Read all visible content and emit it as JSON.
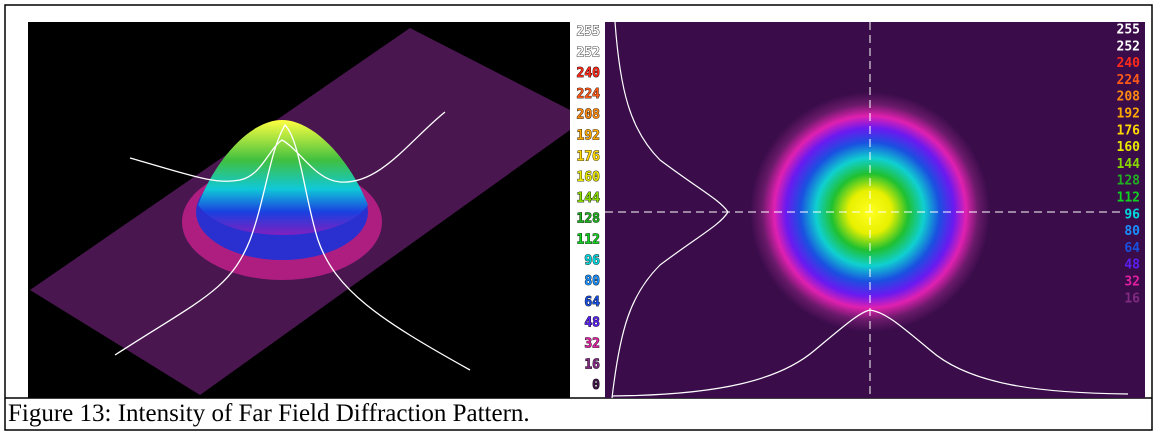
{
  "figure": {
    "left_scale": [
      {
        "label": "255",
        "color": "#ffffff"
      },
      {
        "label": "252",
        "color": "#ffffff"
      },
      {
        "label": "240",
        "color": "#ff2a1a"
      },
      {
        "label": "224",
        "color": "#ff5a1a"
      },
      {
        "label": "208",
        "color": "#ff8a10"
      },
      {
        "label": "192",
        "color": "#ffa800"
      },
      {
        "label": "176",
        "color": "#ffd800"
      },
      {
        "label": "160",
        "color": "#e8e800"
      },
      {
        "label": "144",
        "color": "#88d800"
      },
      {
        "label": "128",
        "color": "#20b020"
      },
      {
        "label": "112",
        "color": "#10d020"
      },
      {
        "label": "96",
        "color": "#00d8e0"
      },
      {
        "label": "80",
        "color": "#1a90ff"
      },
      {
        "label": "64",
        "color": "#1a50e0"
      },
      {
        "label": "48",
        "color": "#5a20f0"
      },
      {
        "label": "32",
        "color": "#e020a0"
      },
      {
        "label": "16",
        "color": "#802a80"
      },
      {
        "label": "0",
        "color": "#40184a"
      }
    ],
    "right_scale": [
      {
        "label": "255",
        "color": "#ffffff"
      },
      {
        "label": "252",
        "color": "#ffffff"
      },
      {
        "label": "240",
        "color": "#ff2a1a"
      },
      {
        "label": "224",
        "color": "#ff5a1a"
      },
      {
        "label": "208",
        "color": "#ff8a10"
      },
      {
        "label": "192",
        "color": "#ffa800"
      },
      {
        "label": "176",
        "color": "#ffd800"
      },
      {
        "label": "160",
        "color": "#e8e800"
      },
      {
        "label": "144",
        "color": "#88d800"
      },
      {
        "label": "128",
        "color": "#20b020"
      },
      {
        "label": "112",
        "color": "#10d020"
      },
      {
        "label": "96",
        "color": "#00d8e0"
      },
      {
        "label": "80",
        "color": "#1a90ff"
      },
      {
        "label": "64",
        "color": "#1a50e0"
      },
      {
        "label": "48",
        "color": "#5a20f0"
      },
      {
        "label": "32",
        "color": "#e020a0"
      },
      {
        "label": "16",
        "color": "#802a80"
      }
    ],
    "caption": "Figure 13:  Intensity of Far Field Diffraction Pattern."
  }
}
